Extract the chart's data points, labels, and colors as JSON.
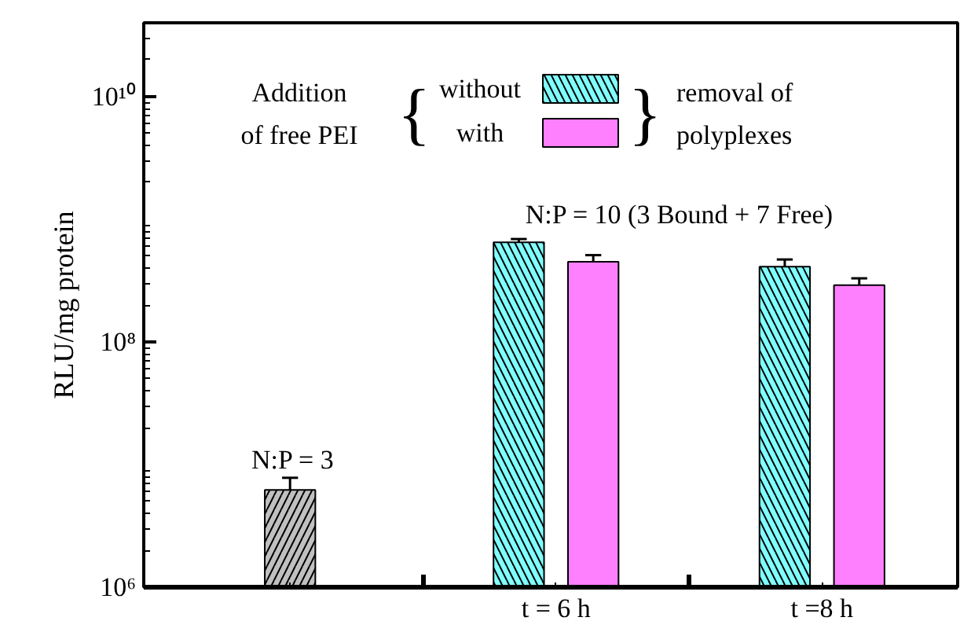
{
  "chart_data": {
    "type": "bar",
    "ylabel": "RLU/mg protein",
    "categories": [
      null,
      "t = 6 h",
      "t =8 h"
    ],
    "series": [
      {
        "color": "#c0c0c0",
        "values": [
          6200000.0,
          null,
          null
        ],
        "errors": [
          [
            6200000.0,
            7800000.0
          ],
          null,
          null
        ]
      },
      {
        "name": "without",
        "color": "#80ffff",
        "values": [
          null,
          650000000.0,
          410000000.0
        ],
        "errors": [
          null,
          [
            650000000.0,
            690000000.0
          ],
          [
            410000000.0,
            470000000.0
          ]
        ]
      },
      {
        "name": "with",
        "color": "#ff80ff",
        "values": [
          null,
          450000000.0,
          290000000.0
        ],
        "errors": [
          null,
          [
            450000000.0,
            510000000.0
          ],
          [
            290000000.0,
            330000000.0
          ]
        ]
      }
    ],
    "legend_title": "Addition\nof free PEI",
    "legend": "top",
    "log": true,
    "ylim": [
      1000000.0,
      40000000000.0
    ],
    "yticks": [
      {
        "value": 1000000.0,
        "label": "10⁶"
      },
      {
        "value": 100000000.0,
        "label": "10⁸"
      },
      {
        "value": 10000000000.0,
        "label": "10¹⁰"
      }
    ],
    "annotations": [
      "N:P = 3",
      "N:P = 10 (3 Bound + 7 Free)",
      "{",
      "}",
      "removal of\npolyplexes"
    ],
    "grid": false
  }
}
